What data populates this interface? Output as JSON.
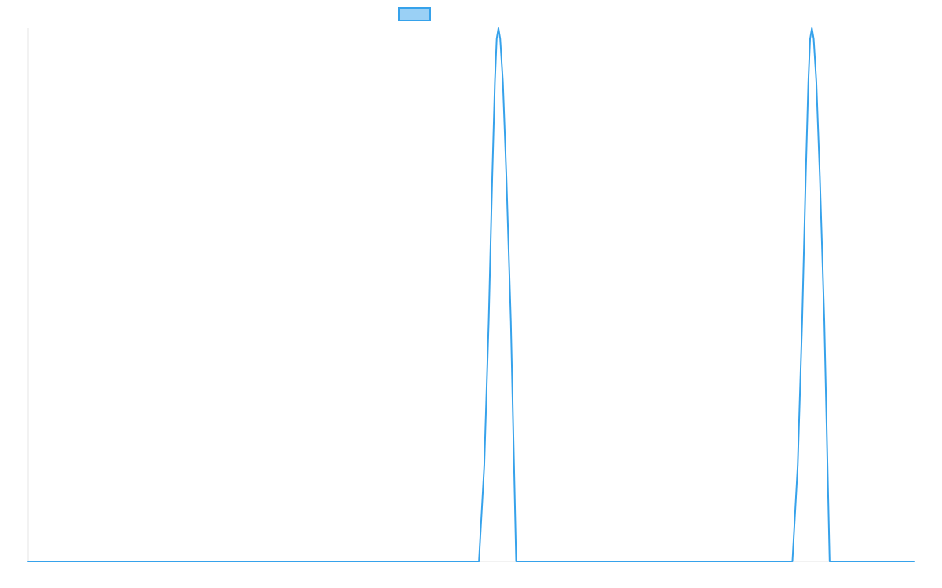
{
  "chart_data": {
    "type": "line",
    "title": "",
    "xlabel": "",
    "ylabel": "",
    "grid": false,
    "legend": {
      "placement": "top-center",
      "show_swatch_only": true
    },
    "xlim": [
      0,
      100
    ],
    "ylim": [
      0,
      1
    ],
    "series": [
      {
        "color": "#36a2eb",
        "fill": "#9ad0f5",
        "x": [
          0,
          50.9,
          51.5,
          52.0,
          52.4,
          52.7,
          52.9,
          53.1,
          53.3,
          53.6,
          54.0,
          54.5,
          55.1,
          86.3,
          86.9,
          87.4,
          87.8,
          88.1,
          88.3,
          88.5,
          88.7,
          89.0,
          89.4,
          89.9,
          90.5,
          100
        ],
        "values": [
          0,
          0,
          0.18,
          0.45,
          0.72,
          0.9,
          0.98,
          1.0,
          0.98,
          0.9,
          0.72,
          0.45,
          0,
          0,
          0.18,
          0.45,
          0.72,
          0.9,
          0.98,
          1.0,
          0.98,
          0.9,
          0.72,
          0.45,
          0,
          0
        ]
      }
    ]
  }
}
